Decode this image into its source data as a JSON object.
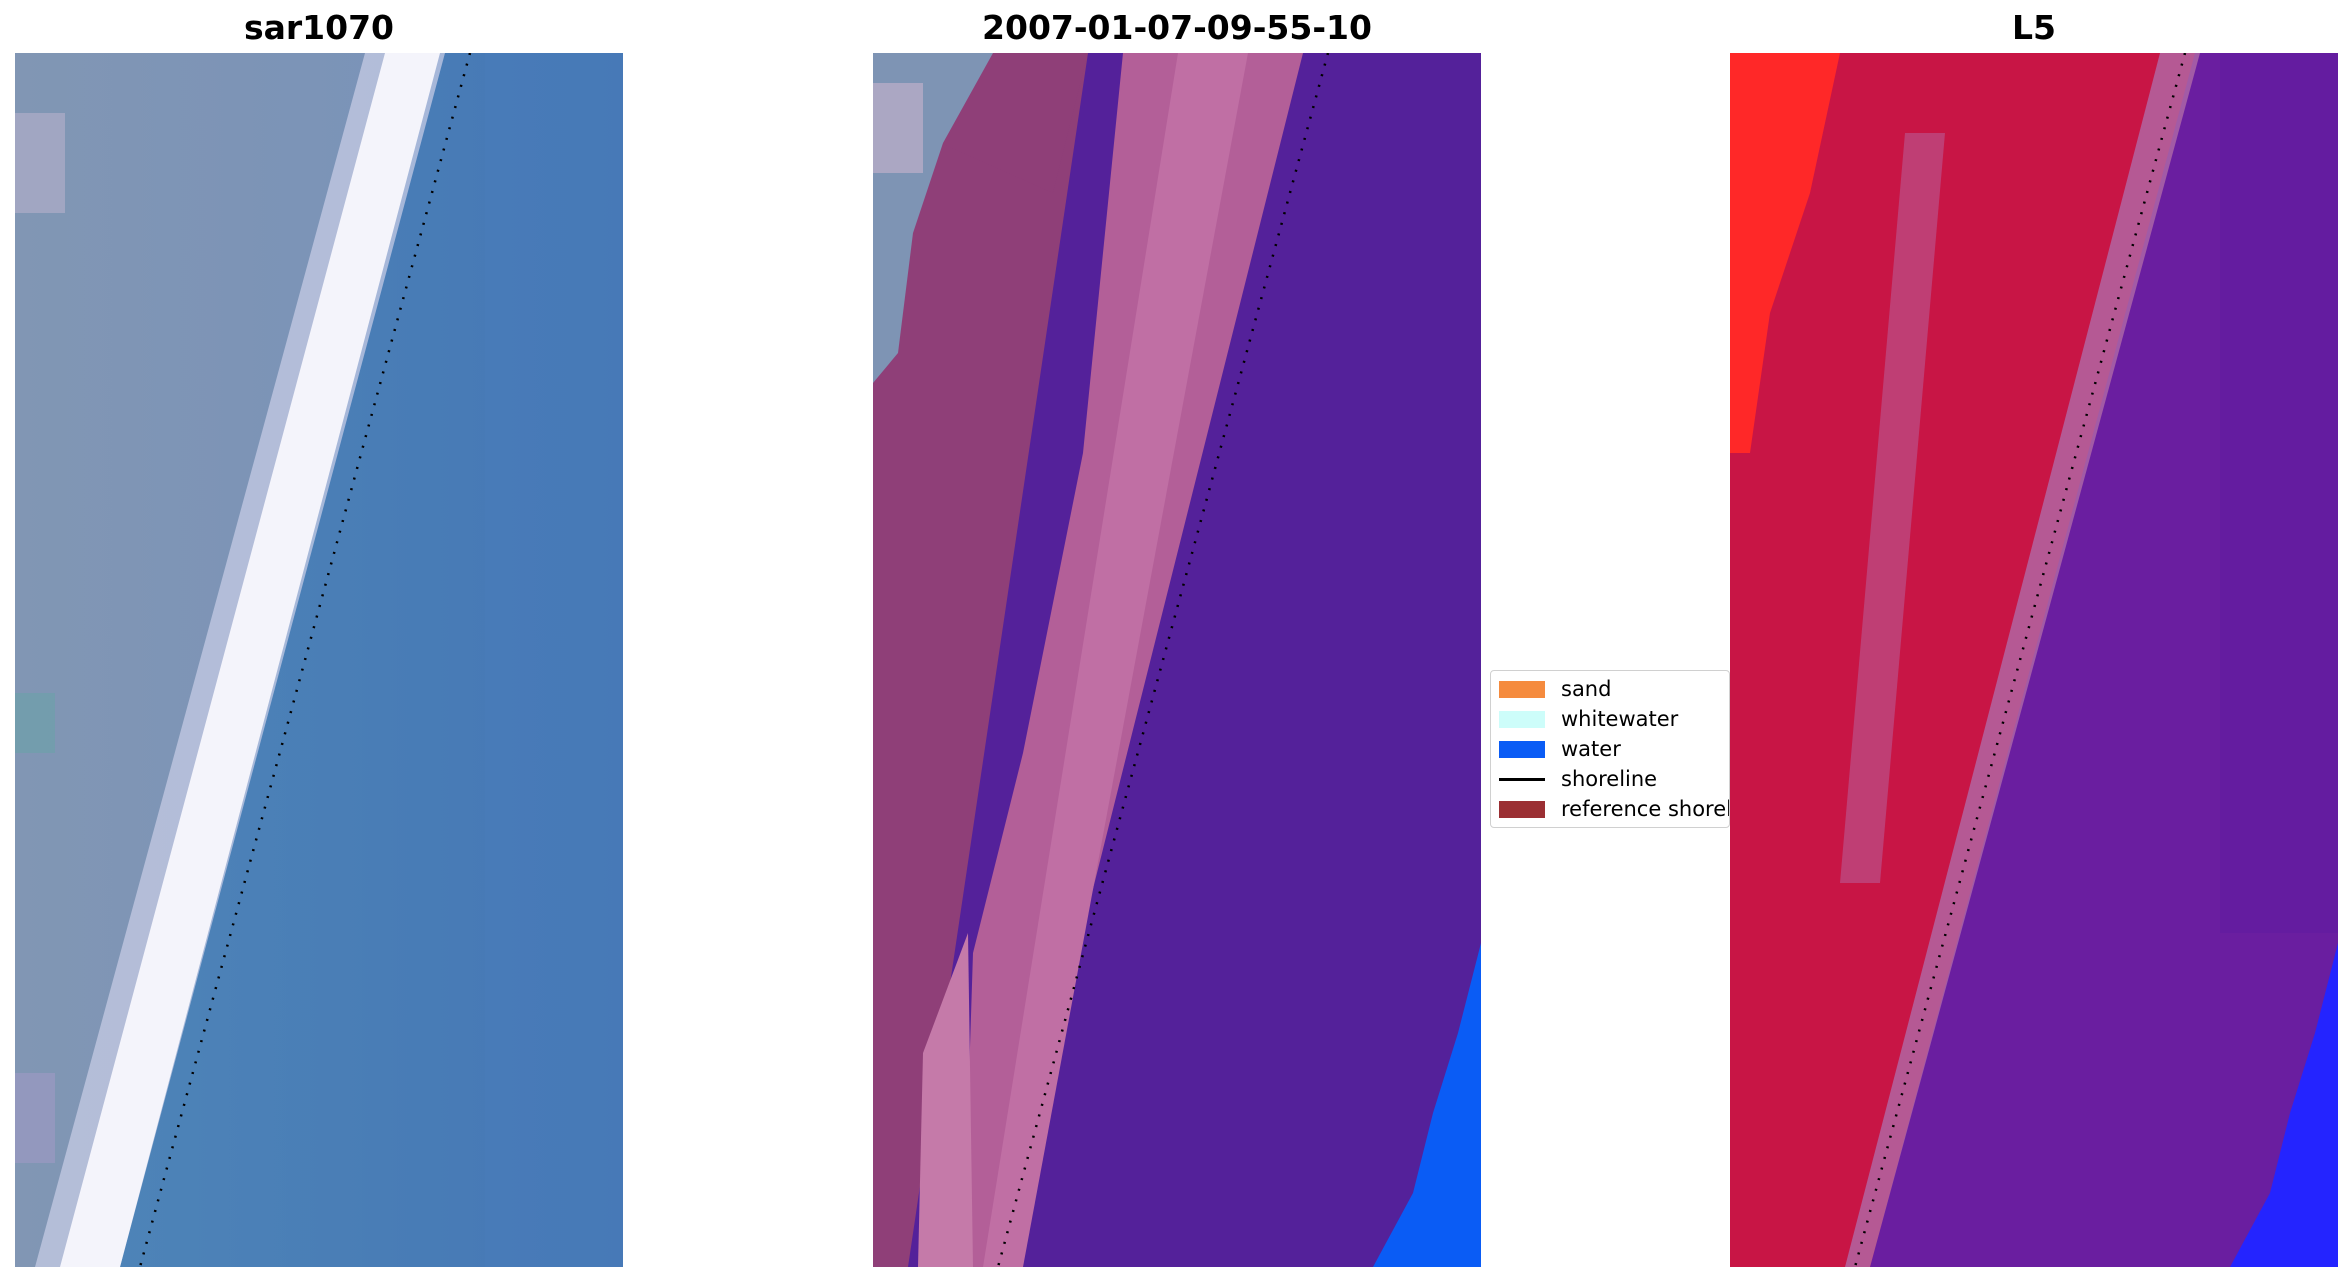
{
  "panels": [
    {
      "title": "sar1070"
    },
    {
      "title": "2007-01-07-09-55-10"
    },
    {
      "title": "L5"
    }
  ],
  "legend": {
    "items": [
      {
        "label": "sand",
        "color": "#f58b3e",
        "kind": "patch"
      },
      {
        "label": "whitewater",
        "color": "#cdfdfa",
        "kind": "patch"
      },
      {
        "label": "water",
        "color": "#0a5cf5",
        "kind": "patch"
      },
      {
        "label": "shoreline",
        "color": "#000000",
        "kind": "line"
      },
      {
        "label": "reference shoreline",
        "color": "#9b2f33",
        "kind": "patch"
      }
    ]
  },
  "colors": {
    "sar_water": "#4b84ba",
    "sar_land": "#7d94b5",
    "whitewater_band": "#f3f3fb",
    "class_water": "#54219a",
    "class_sand_dark": "#8f3f78",
    "class_sand_light": "#bb6aa2",
    "l5_red": "#c81545",
    "l5_purple": "#6a1ea0",
    "l5_bright_red": "#ff2020",
    "l5_blue": "#2424ff"
  }
}
